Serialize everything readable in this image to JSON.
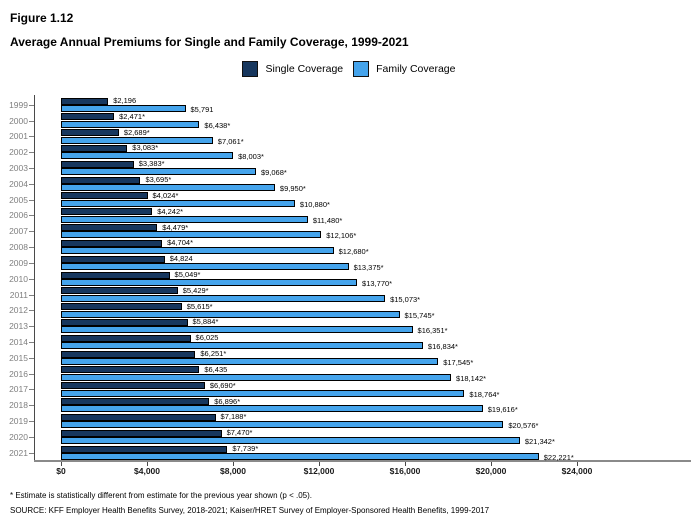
{
  "header": {
    "figure_number": "Figure 1.12",
    "title": "Average Annual Premiums for Single and Family Coverage, 1999-2021"
  },
  "footnote": "* Estimate is statistically different from estimate for the previous year shown (p < .05).",
  "source": "SOURCE: KFF Employer Health Benefits Survey, 2018-2021; Kaiser/HRET Survey of Employer-Sponsored Health Benefits, 1999-2017",
  "chart_data": {
    "type": "bar",
    "orientation": "horizontal",
    "title": "Average Annual Premiums for Single and Family Coverage, 1999-2021",
    "categories": [
      1999,
      2000,
      2001,
      2002,
      2003,
      2004,
      2005,
      2006,
      2007,
      2008,
      2009,
      2010,
      2011,
      2012,
      2013,
      2014,
      2015,
      2016,
      2017,
      2018,
      2019,
      2020,
      2021
    ],
    "series": [
      {
        "name": "Single Coverage",
        "color": "#17375E",
        "values": [
          2196,
          2471,
          2689,
          3083,
          3383,
          3695,
          4024,
          4242,
          4479,
          4704,
          4824,
          5049,
          5429,
          5615,
          5884,
          6025,
          6251,
          6435,
          6690,
          6896,
          7188,
          7470,
          7739
        ],
        "labels": [
          "$2,196",
          "$2,471*",
          "$2,689*",
          "$3,083*",
          "$3,383*",
          "$3,695*",
          "$4,024*",
          "$4,242*",
          "$4,479*",
          "$4,704*",
          "$4,824",
          "$5,049*",
          "$5,429*",
          "$5,615*",
          "$5,884*",
          "$6,025",
          "$6,251*",
          "$6,435",
          "$6,690*",
          "$6,896*",
          "$7,188*",
          "$7,470*",
          "$7,739*"
        ]
      },
      {
        "name": "Family Coverage",
        "color": "#45A4EC",
        "values": [
          5791,
          6438,
          7061,
          8003,
          9068,
          9950,
          10880,
          11480,
          12106,
          12680,
          13375,
          13770,
          15073,
          15745,
          16351,
          16834,
          17545,
          18142,
          18764,
          19616,
          20576,
          21342,
          22221
        ],
        "labels": [
          "$5,791",
          "$6,438*",
          "$7,061*",
          "$8,003*",
          "$9,068*",
          "$9,950*",
          "$10,880*",
          "$11,480*",
          "$12,106*",
          "$12,680*",
          "$13,375*",
          "$13,770*",
          "$15,073*",
          "$15,745*",
          "$16,351*",
          "$16,834*",
          "$17,545*",
          "$18,142*",
          "$18,764*",
          "$19,616*",
          "$20,576*",
          "$21,342*",
          "$22,221*"
        ]
      }
    ],
    "x_ticks": [
      "$0",
      "$4,000",
      "$8,000",
      "$12,000",
      "$16,000",
      "$20,000",
      "$24,000"
    ],
    "x_tick_values": [
      0,
      4000,
      8000,
      12000,
      16000,
      20000,
      24000
    ],
    "xlim": [
      0,
      24000
    ],
    "grid": false,
    "legend_position": "top",
    "bar_border_color": "#000000"
  }
}
